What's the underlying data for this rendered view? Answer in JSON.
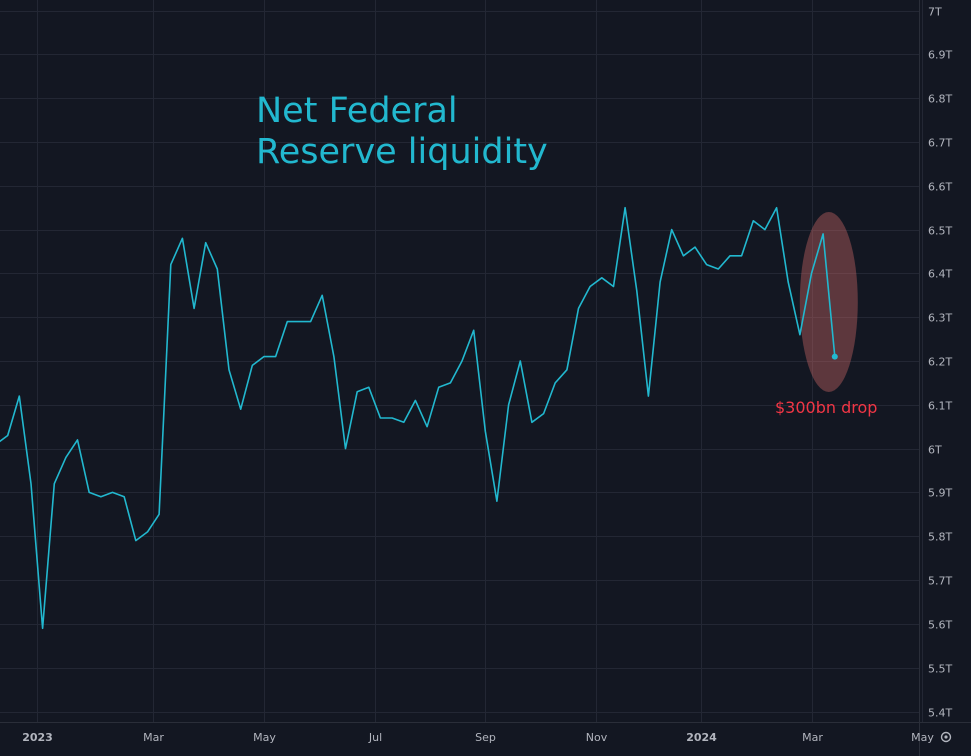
{
  "chart_data": {
    "type": "line",
    "title_lines": [
      "Net Federal",
      "Reserve liquidity"
    ],
    "y_unit": "T",
    "ylim": [
      5.4,
      7.0
    ],
    "y_ticks": [
      "7T",
      "6.9T",
      "6.8T",
      "6.7T",
      "6.6T",
      "6.5T",
      "6.4T",
      "6.3T",
      "6.2T",
      "6.1T",
      "6T",
      "5.9T",
      "5.8T",
      "5.7T",
      "5.6T",
      "5.5T",
      "5.4T"
    ],
    "x_ticks": [
      {
        "label": "2023",
        "index": 3.5,
        "bold": true
      },
      {
        "label": "Mar",
        "index": 13.5,
        "bold": false
      },
      {
        "label": "May",
        "index": 23,
        "bold": false
      },
      {
        "label": "Jul",
        "index": 32.5,
        "bold": false
      },
      {
        "label": "Sep",
        "index": 42,
        "bold": false
      },
      {
        "label": "Nov",
        "index": 51.5,
        "bold": false
      },
      {
        "label": "2024",
        "index": 60.5,
        "bold": true
      },
      {
        "label": "Mar",
        "index": 70,
        "bold": false
      },
      {
        "label": "May",
        "index": 79.5,
        "bold": false
      }
    ],
    "series": [
      {
        "name": "Net Federal Reserve liquidity",
        "color": "#22b8cf",
        "values": [
          6.01,
          6.03,
          6.12,
          5.92,
          5.59,
          5.92,
          5.98,
          6.02,
          5.9,
          5.89,
          5.9,
          5.89,
          5.79,
          5.81,
          5.85,
          6.42,
          6.48,
          6.32,
          6.47,
          6.41,
          6.18,
          6.09,
          6.19,
          6.21,
          6.21,
          6.29,
          6.29,
          6.29,
          6.35,
          6.21,
          6.0,
          6.13,
          6.14,
          6.07,
          6.07,
          6.06,
          6.11,
          6.05,
          6.14,
          6.15,
          6.2,
          6.27,
          6.04,
          5.88,
          6.1,
          6.2,
          6.06,
          6.08,
          6.15,
          6.18,
          6.32,
          6.37,
          6.39,
          6.37,
          6.55,
          6.36,
          6.12,
          6.38,
          6.5,
          6.44,
          6.46,
          6.42,
          6.41,
          6.44,
          6.44,
          6.52,
          6.5,
          6.55,
          6.38,
          6.26,
          6.4,
          6.49,
          6.21
        ]
      }
    ],
    "annotation": {
      "text": "$300bn drop",
      "highlight_index": 72,
      "color": "#f23645"
    }
  },
  "ui": {
    "settings_icon": "gear-icon"
  }
}
